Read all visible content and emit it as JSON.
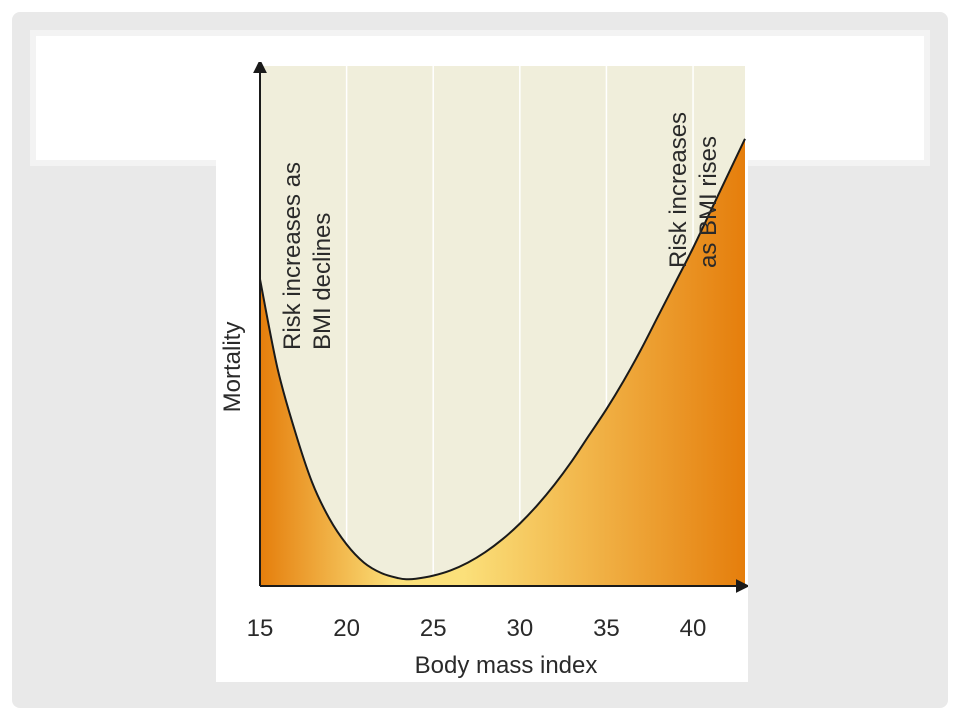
{
  "chart_data": {
    "type": "area",
    "title": "",
    "xlabel": "Body mass index",
    "ylabel": "Mortality",
    "xlim": [
      15,
      43
    ],
    "x_ticks": [
      15,
      20,
      25,
      30,
      35,
      40
    ],
    "y_ticks": [],
    "grid": "vertical",
    "series": [
      {
        "x": [
          15,
          16,
          17,
          18,
          19,
          20,
          21,
          22,
          23,
          23.5,
          24,
          25,
          26,
          27,
          28,
          29,
          30,
          31,
          32,
          33,
          34,
          35,
          36,
          37,
          38,
          39,
          40,
          41,
          42,
          43
        ],
        "y": [
          0.59,
          0.42,
          0.3,
          0.2,
          0.13,
          0.08,
          0.045,
          0.025,
          0.015,
          0.013,
          0.014,
          0.02,
          0.03,
          0.045,
          0.065,
          0.09,
          0.12,
          0.155,
          0.195,
          0.24,
          0.29,
          0.34,
          0.395,
          0.455,
          0.52,
          0.585,
          0.65,
          0.72,
          0.79,
          0.86
        ]
      }
    ],
    "annotations": [
      {
        "lines": [
          "Risk increases as",
          "BMI declines"
        ]
      },
      {
        "lines": [
          "Risk increases",
          "as BMI rises"
        ]
      }
    ]
  },
  "colors": {
    "plot_background": "#f0eedb",
    "fill_dark": "#e57e0c",
    "fill_light": "#fbe07a",
    "curve": "#1a1a1a"
  }
}
